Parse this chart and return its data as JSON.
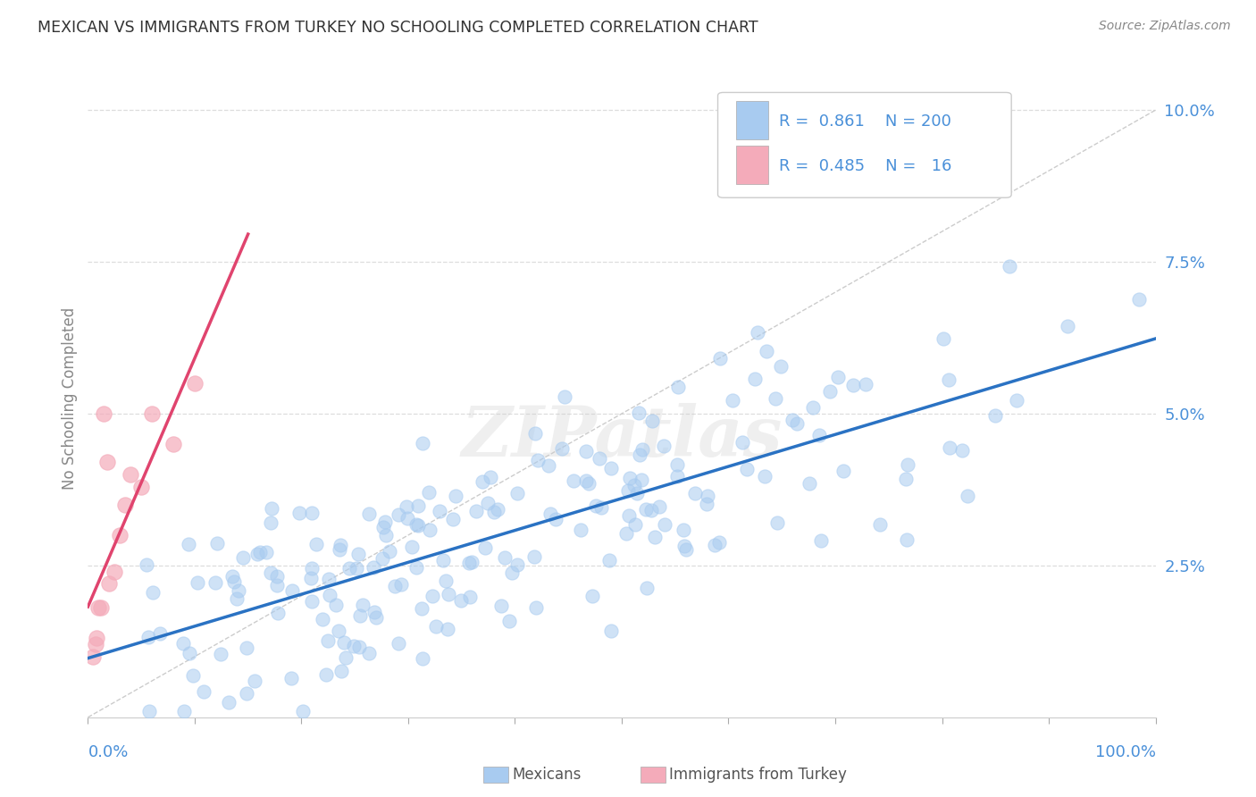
{
  "title": "MEXICAN VS IMMIGRANTS FROM TURKEY NO SCHOOLING COMPLETED CORRELATION CHART",
  "source": "Source: ZipAtlas.com",
  "ylabel": "No Schooling Completed",
  "watermark": "ZIPatlas",
  "legend_mexicans_R": 0.861,
  "legend_mexicans_N": 200,
  "legend_turkey_R": 0.485,
  "legend_turkey_N": 16,
  "x_range": [
    0.0,
    1.0
  ],
  "y_range": [
    0.0,
    0.105
  ],
  "y_ticks": [
    0.0,
    0.025,
    0.05,
    0.075,
    0.1
  ],
  "y_tick_labels": [
    "",
    "2.5%",
    "5.0%",
    "7.5%",
    "10.0%"
  ],
  "blue_color": "#A8CBF0",
  "pink_color": "#F4ABBA",
  "line_blue": "#2A72C3",
  "line_pink": "#E0446E",
  "diag_color": "#CCCCCC",
  "title_color": "#333333",
  "axis_label_color": "#888888",
  "legend_text_color": "#4A90D9",
  "background_color": "#FFFFFF",
  "grid_color": "#DDDDDD",
  "seed": 42,
  "dot_size": 120,
  "dot_alpha": 0.55,
  "dot_linewidth": 0.8
}
